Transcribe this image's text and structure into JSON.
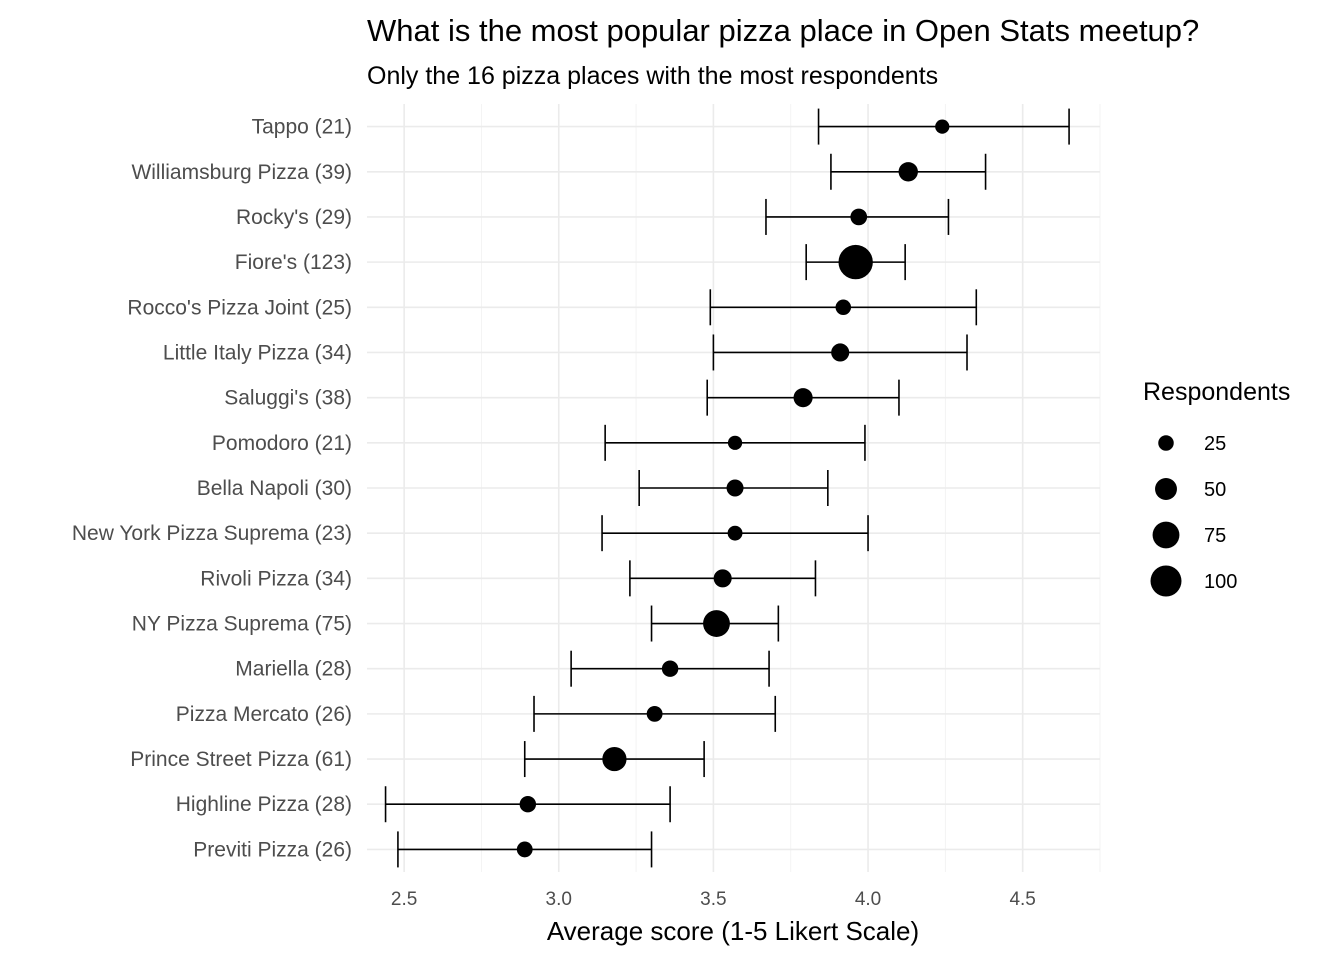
{
  "chart_data": {
    "type": "scatter",
    "title": "What is the most popular pizza place in Open Stats meetup?",
    "subtitle": "Only the 16 pizza places with the most respondents",
    "xlabel": "Average score (1-5 Likert Scale)",
    "ylabel": "",
    "xlim": [
      2.38,
      4.75
    ],
    "x_ticks": [
      "2.5",
      "3.0",
      "3.5",
      "4.0",
      "4.5"
    ],
    "x_tick_values": [
      2.5,
      3.0,
      3.5,
      4.0,
      4.5
    ],
    "grid": true,
    "legend": {
      "title": "Respondents",
      "placement": "right",
      "entries": [
        {
          "label": "25",
          "value": 25
        },
        {
          "label": "50",
          "value": 50
        },
        {
          "label": "75",
          "value": 75
        },
        {
          "label": "100",
          "value": 100
        }
      ]
    },
    "points": [
      {
        "label": "Tappo (21)",
        "mean": 4.24,
        "low": 3.84,
        "high": 4.65,
        "respondents": 21
      },
      {
        "label": "Williamsburg Pizza (39)",
        "mean": 4.13,
        "low": 3.88,
        "high": 4.38,
        "respondents": 39
      },
      {
        "label": "Rocky's (29)",
        "mean": 3.97,
        "low": 3.67,
        "high": 4.26,
        "respondents": 29
      },
      {
        "label": "Fiore's (123)",
        "mean": 3.96,
        "low": 3.8,
        "high": 4.12,
        "respondents": 123
      },
      {
        "label": "Rocco's Pizza Joint (25)",
        "mean": 3.92,
        "low": 3.49,
        "high": 4.35,
        "respondents": 25
      },
      {
        "label": "Little Italy Pizza (34)",
        "mean": 3.91,
        "low": 3.5,
        "high": 4.32,
        "respondents": 34
      },
      {
        "label": "Saluggi's (38)",
        "mean": 3.79,
        "low": 3.48,
        "high": 4.1,
        "respondents": 38
      },
      {
        "label": "Pomodoro (21)",
        "mean": 3.57,
        "low": 3.15,
        "high": 3.99,
        "respondents": 21
      },
      {
        "label": "Bella Napoli (30)",
        "mean": 3.57,
        "low": 3.26,
        "high": 3.87,
        "respondents": 30
      },
      {
        "label": "New York Pizza Suprema (23)",
        "mean": 3.57,
        "low": 3.14,
        "high": 4.0,
        "respondents": 23
      },
      {
        "label": "Rivoli Pizza (34)",
        "mean": 3.53,
        "low": 3.23,
        "high": 3.83,
        "respondents": 34
      },
      {
        "label": "NY Pizza Suprema (75)",
        "mean": 3.51,
        "low": 3.3,
        "high": 3.71,
        "respondents": 75
      },
      {
        "label": "Mariella (28)",
        "mean": 3.36,
        "low": 3.04,
        "high": 3.68,
        "respondents": 28
      },
      {
        "label": "Pizza Mercato (26)",
        "mean": 3.31,
        "low": 2.92,
        "high": 3.7,
        "respondents": 26
      },
      {
        "label": "Prince Street Pizza (61)",
        "mean": 3.18,
        "low": 2.89,
        "high": 3.47,
        "respondents": 61
      },
      {
        "label": "Highline Pizza (28)",
        "mean": 2.9,
        "low": 2.44,
        "high": 3.36,
        "respondents": 28
      },
      {
        "label": "Previti Pizza (26)",
        "mean": 2.89,
        "low": 2.48,
        "high": 3.3,
        "respondents": 26
      }
    ]
  }
}
